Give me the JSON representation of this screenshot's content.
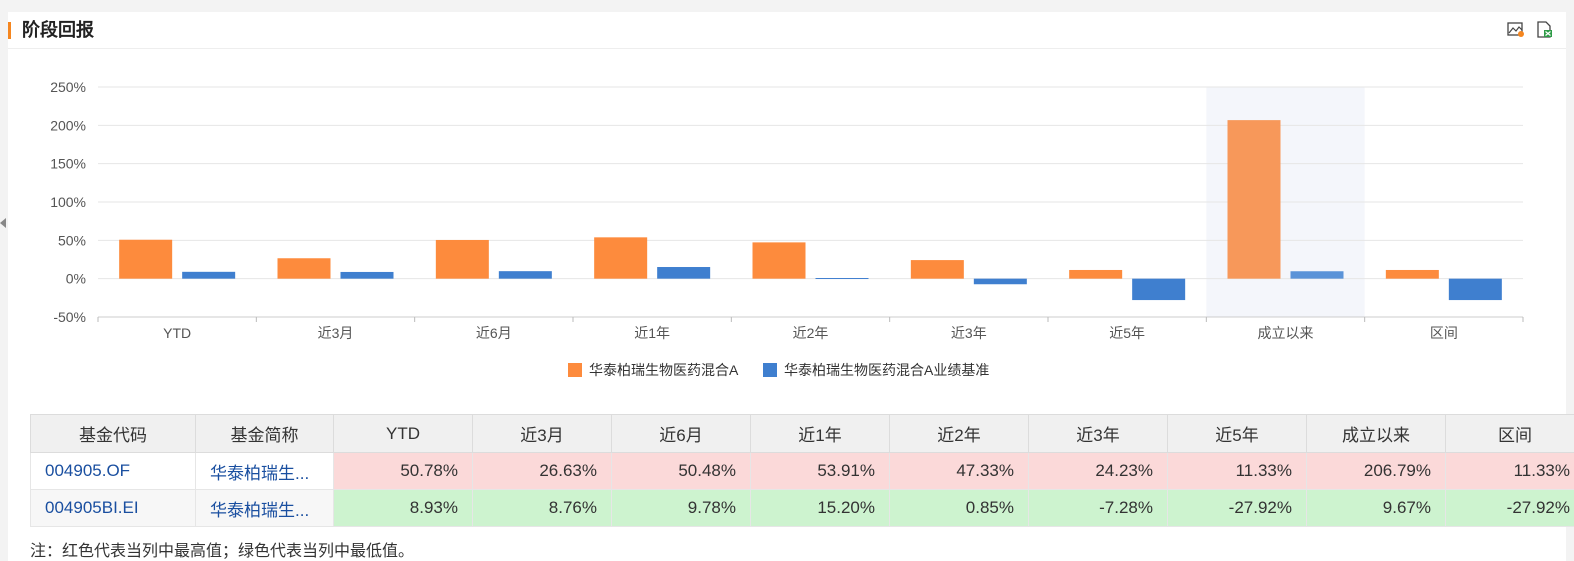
{
  "header": {
    "title": "阶段回报"
  },
  "icons": {
    "export_image": "image-export-icon",
    "export_excel": "excel-export-icon"
  },
  "colors": {
    "accent": "#f5861f",
    "series_a": "#fd8b3d",
    "series_b": "#3f7fcf",
    "highlight_band": "#f4f6fb",
    "max_cell": "#fbd9d9",
    "min_cell": "#cdf3cf",
    "link": "#1a4fa0"
  },
  "chart_data": {
    "type": "bar",
    "categories": [
      "YTD",
      "近3月",
      "近6月",
      "近1年",
      "近2年",
      "近3年",
      "近5年",
      "成立以来",
      "区间"
    ],
    "series": [
      {
        "name": "华泰柏瑞生物医药混合A",
        "values": [
          50.78,
          26.63,
          50.48,
          53.91,
          47.33,
          24.23,
          11.33,
          206.79,
          11.33
        ]
      },
      {
        "name": "华泰柏瑞生物医药混合A业绩基准",
        "values": [
          8.93,
          8.76,
          9.78,
          15.2,
          0.85,
          -7.28,
          -27.92,
          9.67,
          -27.92
        ]
      }
    ],
    "yticks": [
      "250%",
      "200%",
      "150%",
      "100%",
      "50%",
      "0%",
      "-50%"
    ],
    "ylim": [
      -50,
      250
    ],
    "highlighted_category": "成立以来",
    "grid": true,
    "legend_position": "bottom"
  },
  "table": {
    "headers": [
      "基金代码",
      "基金简称",
      "YTD",
      "近3月",
      "近6月",
      "近1年",
      "近2年",
      "近3年",
      "近5年",
      "成立以来",
      "区间"
    ],
    "rows": [
      {
        "code": "004905.OF",
        "name": "华泰柏瑞生...",
        "values": [
          "50.78%",
          "26.63%",
          "50.48%",
          "53.91%",
          "47.33%",
          "24.23%",
          "11.33%",
          "206.79%",
          "11.33%"
        ]
      },
      {
        "code": "004905BI.EI",
        "name": "华泰柏瑞生...",
        "values": [
          "8.93%",
          "8.76%",
          "9.78%",
          "15.20%",
          "0.85%",
          "-7.28%",
          "-27.92%",
          "9.67%",
          "-27.92%"
        ]
      }
    ]
  },
  "note": "注：红色代表当列中最高值；绿色代表当列中最低值。"
}
